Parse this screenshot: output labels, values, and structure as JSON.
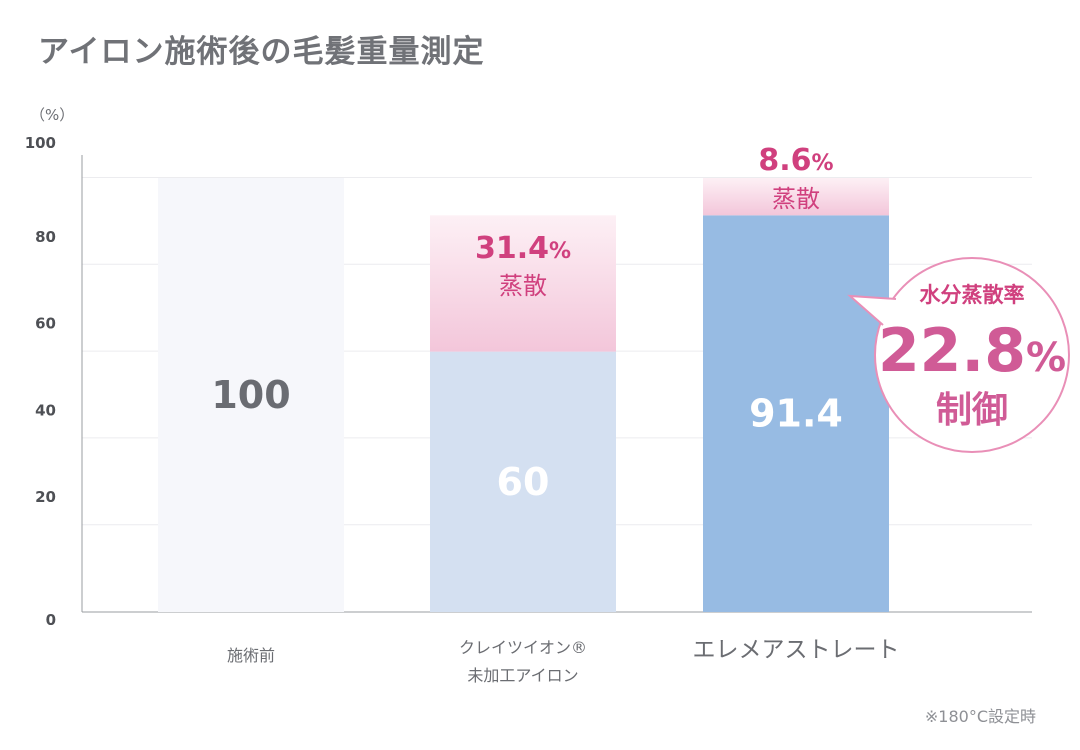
{
  "title": "アイロン施術後の毛髪重量測定",
  "note": "※180°C設定時",
  "chart_data": {
    "type": "bar",
    "stacked": true,
    "unit_label": "（%）",
    "y_ticks": [
      "0",
      "20",
      "40",
      "60",
      "80",
      "100"
    ],
    "ylim": [
      0,
      100
    ],
    "categories": [
      {
        "lines": [
          "施術前"
        ],
        "large": false
      },
      {
        "lines": [
          "クレイツイオン®",
          "未加工アイロン"
        ],
        "large": false
      },
      {
        "lines": [
          "エレメアストレート"
        ],
        "large": true
      }
    ],
    "series": [
      {
        "values": [
          100,
          60,
          91.4
        ]
      },
      {
        "values": [
          0,
          31.4,
          8.6
        ]
      }
    ],
    "remaining_labels": [
      "100",
      "60",
      "91.4"
    ],
    "evaporation_labels": [
      "",
      "31.4",
      "8.6"
    ],
    "evaporation_word": "蒸散",
    "percent_sign": "%",
    "colors": {
      "remaining": [
        "#f6f7fb",
        "#d4e0f1",
        "#97bbe3"
      ],
      "remaining_text": [
        "#6a6c72",
        "#ffffff",
        "#ffffff"
      ],
      "evap_top": "#fdf0f5",
      "evap_bottom": "#f3c6da",
      "callout_border": "#e98fb7"
    },
    "callout": {
      "top": "水分蒸散率",
      "value": "22.8",
      "pct": "%",
      "bottom": "制御"
    }
  }
}
